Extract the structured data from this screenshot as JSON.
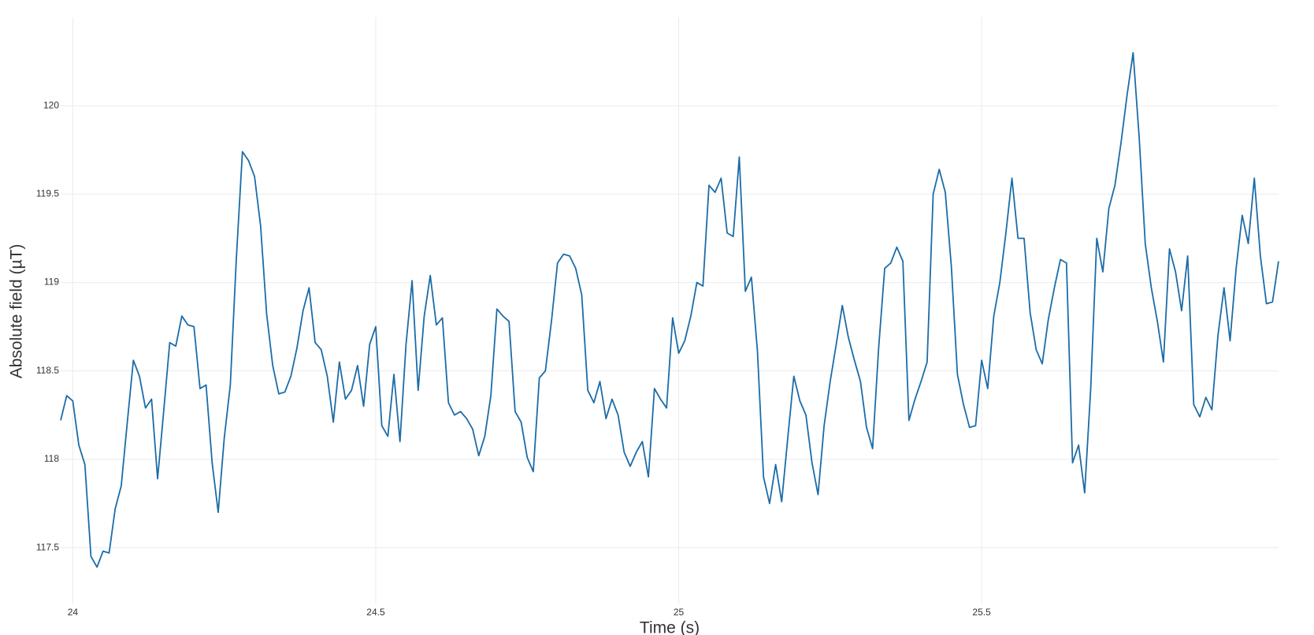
{
  "chart_data": {
    "type": "line",
    "xlabel": "Time (s)",
    "ylabel": "Absolute field (µT)",
    "x": [
      23.98,
      23.99,
      24.0,
      24.01,
      24.02,
      24.03,
      24.04,
      24.05,
      24.06,
      24.07,
      24.08,
      24.09,
      24.1,
      24.11,
      24.12,
      24.13,
      24.14,
      24.15,
      24.16,
      24.17,
      24.18,
      24.19,
      24.2,
      24.21,
      24.22,
      24.23,
      24.24,
      24.25,
      24.26,
      24.27,
      24.28,
      24.29,
      24.3,
      24.31,
      24.32,
      24.33,
      24.34,
      24.35,
      24.36,
      24.37,
      24.38,
      24.39,
      24.4,
      24.41,
      24.42,
      24.43,
      24.44,
      24.45,
      24.46,
      24.47,
      24.48,
      24.49,
      24.5,
      24.51,
      24.52,
      24.53,
      24.54,
      24.55,
      24.56,
      24.57,
      24.58,
      24.59,
      24.6,
      24.61,
      24.62,
      24.63,
      24.64,
      24.65,
      24.66,
      24.67,
      24.68,
      24.69,
      24.7,
      24.71,
      24.72,
      24.73,
      24.74,
      24.75,
      24.76,
      24.77,
      24.78,
      24.79,
      24.8,
      24.81,
      24.82,
      24.83,
      24.84,
      24.85,
      24.86,
      24.87,
      24.88,
      24.89,
      24.9,
      24.91,
      24.92,
      24.93,
      24.94,
      24.95,
      24.96,
      24.97,
      24.98,
      24.99,
      25.0,
      25.01,
      25.02,
      25.03,
      25.04,
      25.05,
      25.06,
      25.07,
      25.08,
      25.09,
      25.1,
      25.11,
      25.12,
      25.13,
      25.14,
      25.15,
      25.16,
      25.17,
      25.18,
      25.19,
      25.2,
      25.21,
      25.22,
      25.23,
      25.24,
      25.25,
      25.26,
      25.27,
      25.28,
      25.29,
      25.3,
      25.31,
      25.32,
      25.33,
      25.34,
      25.35,
      25.36,
      25.37,
      25.38,
      25.39,
      25.4,
      25.41,
      25.42,
      25.43,
      25.44,
      25.45,
      25.46,
      25.47,
      25.48,
      25.49,
      25.5,
      25.51,
      25.52,
      25.53,
      25.54,
      25.55,
      25.56,
      25.57,
      25.58,
      25.59,
      25.6,
      25.61,
      25.62,
      25.63,
      25.64,
      25.65,
      25.66,
      25.67,
      25.68,
      25.69,
      25.7,
      25.71,
      25.72,
      25.73,
      25.74,
      25.75,
      25.76,
      25.77,
      25.78,
      25.79,
      25.8,
      25.81,
      25.82,
      25.83,
      25.84,
      25.85,
      25.86,
      25.87,
      25.88,
      25.89,
      25.9,
      25.91,
      25.92,
      25.93,
      25.94,
      25.95,
      25.96,
      25.97,
      25.98,
      25.99
    ],
    "series": [
      {
        "color": "#1b6ca8",
        "values": [
          118.22,
          118.36,
          118.33,
          118.08,
          117.97,
          117.45,
          117.39,
          117.48,
          117.47,
          117.72,
          117.85,
          118.21,
          118.56,
          118.47,
          118.29,
          118.34,
          117.89,
          118.27,
          118.66,
          118.64,
          118.81,
          118.76,
          118.75,
          118.4,
          118.42,
          117.98,
          117.7,
          118.12,
          118.42,
          119.14,
          119.74,
          119.69,
          119.6,
          119.32,
          118.82,
          118.53,
          118.37,
          118.38,
          118.47,
          118.63,
          118.84,
          118.97,
          118.66,
          118.62,
          118.47,
          118.21,
          118.55,
          118.34,
          118.39,
          118.53,
          118.3,
          118.65,
          118.75,
          118.19,
          118.13,
          118.48,
          118.1,
          118.65,
          119.01,
          118.39,
          118.81,
          119.04,
          118.76,
          118.8,
          118.32,
          118.25,
          118.27,
          118.23,
          118.17,
          118.02,
          118.13,
          118.36,
          118.85,
          118.81,
          118.78,
          118.27,
          118.21,
          118.01,
          117.93,
          118.46,
          118.5,
          118.78,
          119.11,
          119.16,
          119.15,
          119.08,
          118.93,
          118.39,
          118.32,
          118.44,
          118.23,
          118.34,
          118.25,
          118.04,
          117.96,
          118.04,
          118.1,
          117.9,
          118.4,
          118.34,
          118.29,
          118.8,
          118.6,
          118.67,
          118.81,
          119.0,
          118.98,
          119.55,
          119.51,
          119.59,
          119.28,
          119.26,
          119.71,
          118.95,
          119.03,
          118.61,
          117.9,
          117.75,
          117.97,
          117.76,
          118.12,
          118.47,
          118.33,
          118.25,
          117.98,
          117.8,
          118.19,
          118.44,
          118.65,
          118.87,
          118.69,
          118.56,
          118.44,
          118.18,
          118.06,
          118.63,
          119.08,
          119.11,
          119.2,
          119.12,
          118.22,
          118.34,
          118.44,
          118.55,
          119.5,
          119.64,
          119.51,
          119.09,
          118.48,
          118.31,
          118.18,
          118.19,
          118.56,
          118.4,
          118.81,
          119.0,
          119.28,
          119.59,
          119.25,
          119.25,
          118.83,
          118.62,
          118.54,
          118.79,
          118.97,
          119.13,
          119.11,
          117.98,
          118.08,
          117.81,
          118.4,
          119.25,
          119.06,
          119.42,
          119.55,
          119.79,
          120.06,
          120.3,
          119.82,
          119.22,
          118.97,
          118.78,
          118.55,
          119.19,
          119.06,
          118.84,
          119.15,
          118.31,
          118.24,
          118.35,
          118.28,
          118.7,
          118.97,
          118.67,
          119.08,
          119.38,
          119.22,
          119.59,
          119.15,
          118.88,
          118.89,
          119.12
        ]
      }
    ],
    "xlim": [
      23.98,
      25.99
    ],
    "xticks": [
      24,
      24.5,
      25,
      25.5
    ],
    "ylim": [
      117.3,
      120.5
    ],
    "yticks": [
      117.5,
      118,
      118.5,
      119,
      119.5,
      120
    ],
    "grid": true
  }
}
